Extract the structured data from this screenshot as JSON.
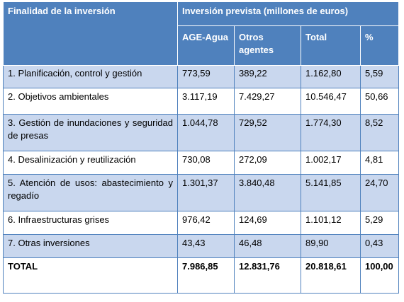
{
  "header": {
    "group_label": "Inversión prevista (millones de euros)",
    "finalidad_label": "Finalidad de la inversión",
    "columns": [
      "AGE-Agua",
      "Otros agentes",
      "Total",
      "%"
    ]
  },
  "rows": [
    {
      "finalidad": "1. Planificación, control y gestión",
      "age_agua": "773,59",
      "otros": "389,22",
      "total": "1.162,80",
      "pct": "5,59"
    },
    {
      "finalidad": "2. Objetivos ambientales",
      "age_agua": "3.117,19",
      "otros": "7.429,27",
      "total": "10.546,47",
      "pct": "50,66"
    },
    {
      "finalidad": "3. Gestión de inundaciones y seguridad de presas",
      "age_agua": "1.044,78",
      "otros": "729,52",
      "total": "1.774,30",
      "pct": "8,52"
    },
    {
      "finalidad": "4. Desalinización y reutilización",
      "age_agua": "730,08",
      "otros": "272,09",
      "total": "1.002,17",
      "pct": "4,81"
    },
    {
      "finalidad": "5. Atención de usos: abastecimiento y regadío",
      "age_agua": "1.301,37",
      "otros": "3.840,48",
      "total": "5.141,85",
      "pct": "24,70"
    },
    {
      "finalidad": "6. Infraestructuras grises",
      "age_agua": "976,42",
      "otros": "124,69",
      "total": "1.101,12",
      "pct": "5,29"
    },
    {
      "finalidad": "7. Otras inversiones",
      "age_agua": "43,43",
      "otros": "46,48",
      "total": "89,90",
      "pct": "0,43"
    }
  ],
  "total_row": {
    "finalidad": "TOTAL",
    "age_agua": "7.986,85",
    "otros": "12.831,76",
    "total": "20.818,61",
    "pct": "100,00"
  }
}
